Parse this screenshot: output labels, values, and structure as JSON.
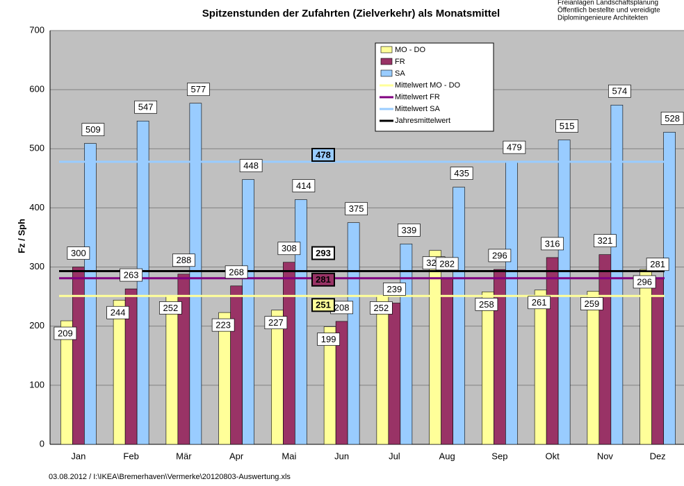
{
  "header_lines": [
    "Freianlagen    Landschaftsplanung",
    "Öffentlich  bestellte  und  vereidigte",
    "Diplomingenieure   Architekten"
  ],
  "footer": "03.08.2012 / I:\\IKEA\\Bremerhaven\\Vermerke\\20120803-Auswertung.xls",
  "chart_data": {
    "type": "bar",
    "title": "Spitzenstunden der Zufahrten (Zielverkehr) als Monatsmittel",
    "y_label": "Fz / Sph",
    "categories": [
      "Jan",
      "Feb",
      "Mär",
      "Apr",
      "Mai",
      "Jun",
      "Jul",
      "Aug",
      "Sep",
      "Okt",
      "Nov",
      "Dez"
    ],
    "series": [
      {
        "name": "MO - DO",
        "color": "#ffff99",
        "values": [
          209,
          244,
          252,
          223,
          227,
          199,
          252,
          328,
          258,
          261,
          259,
          296
        ]
      },
      {
        "name": "FR",
        "color": "#993366",
        "values": [
          300,
          263,
          288,
          268,
          308,
          208,
          239,
          282,
          296,
          316,
          321,
          281
        ]
      },
      {
        "name": "SA",
        "color": "#99ccff",
        "values": [
          509,
          547,
          577,
          448,
          414,
          375,
          339,
          435,
          479,
          515,
          574,
          528
        ]
      }
    ],
    "mean_lines": [
      {
        "name": "Mittelwert MO - DO",
        "color": "#ffff99",
        "value": 251
      },
      {
        "name": "Mittelwert FR",
        "color": "#800080",
        "value": 281
      },
      {
        "name": "Mittelwert SA",
        "color": "#99ccff",
        "value": 478
      },
      {
        "name": "Jahresmittelwert",
        "color": "#000000",
        "value": 293
      }
    ],
    "ylim": [
      0,
      700
    ],
    "yticks": [
      0,
      100,
      200,
      300,
      400,
      500,
      600,
      700
    ],
    "grid": true
  }
}
